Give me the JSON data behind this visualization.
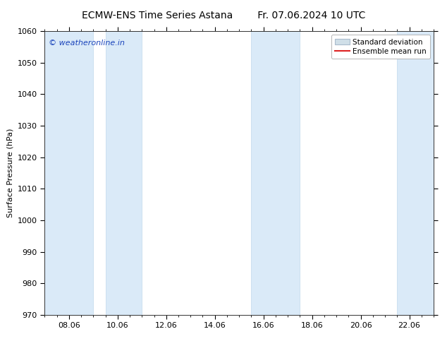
{
  "title_left": "ECMW-ENS Time Series Astana",
  "title_right": "Fr. 07.06.2024 10 UTC",
  "ylabel": "Surface Pressure (hPa)",
  "ylim": [
    970,
    1060
  ],
  "yticks": [
    970,
    980,
    990,
    1000,
    1010,
    1020,
    1030,
    1040,
    1050,
    1060
  ],
  "xtick_labels": [
    "08.06",
    "10.06",
    "12.06",
    "14.06",
    "16.06",
    "18.06",
    "20.06",
    "22.06"
  ],
  "xtick_positions": [
    1,
    3,
    5,
    7,
    9,
    11,
    13,
    15
  ],
  "xlim": [
    0,
    16
  ],
  "shaded_bands": [
    {
      "x_start": 0.0,
      "x_end": 2.0
    },
    {
      "x_start": 2.5,
      "x_end": 4.0
    },
    {
      "x_start": 8.5,
      "x_end": 10.5
    },
    {
      "x_start": 14.5,
      "x_end": 16.0
    }
  ],
  "band_color": "#daeaf8",
  "band_edge_color": "#c0d8ec",
  "watermark_text": "© weatheronline.in",
  "watermark_color": "#1a44bb",
  "legend_std_label": "Standard deviation",
  "legend_ens_label": "Ensemble mean run",
  "legend_std_facecolor": "#d0dfe8",
  "legend_std_edgecolor": "#aabbcc",
  "legend_ens_color": "#dd2222",
  "background_color": "#ffffff",
  "title_fontsize": 10,
  "ylabel_fontsize": 8,
  "tick_fontsize": 8,
  "watermark_fontsize": 8,
  "legend_fontsize": 7.5
}
